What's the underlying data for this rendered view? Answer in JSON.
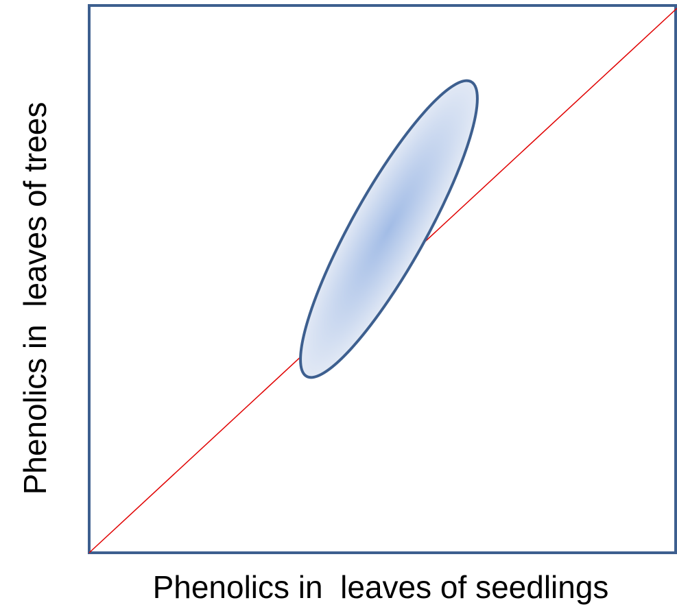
{
  "x_axis_label": "Phenolics in  leaves of seedlings",
  "y_axis_label": "Phenolics in  leaves of trees"
}
